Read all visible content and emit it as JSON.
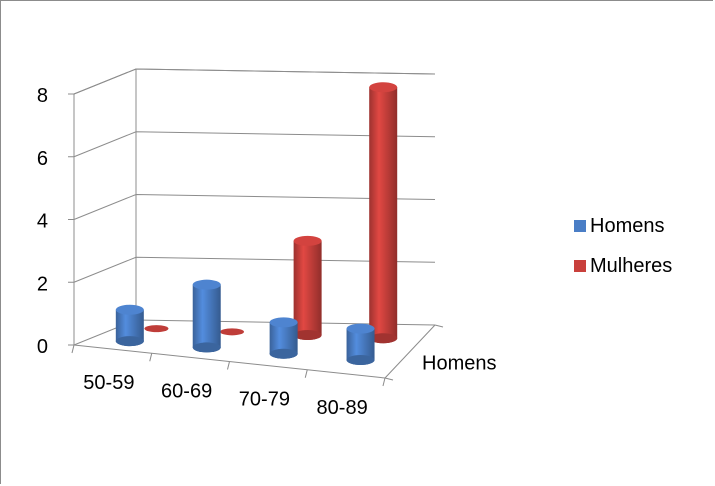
{
  "chart_data": {
    "type": "bar",
    "style": "3d-cylinder",
    "categories": [
      "50-59",
      "60-69",
      "70-79",
      "80-89"
    ],
    "series": [
      {
        "name": "Homens",
        "values": [
          1,
          2,
          1,
          1
        ],
        "color": "#4a7ec6"
      },
      {
        "name": "Mulheres",
        "values": [
          0,
          0,
          3,
          8
        ],
        "color": "#c9403c"
      }
    ],
    "yticks": [
      "0",
      "2",
      "4",
      "6",
      "8"
    ],
    "ylim": [
      0,
      8
    ],
    "depth_axis_label": "Homens",
    "legend_position": "right",
    "grid": true
  }
}
